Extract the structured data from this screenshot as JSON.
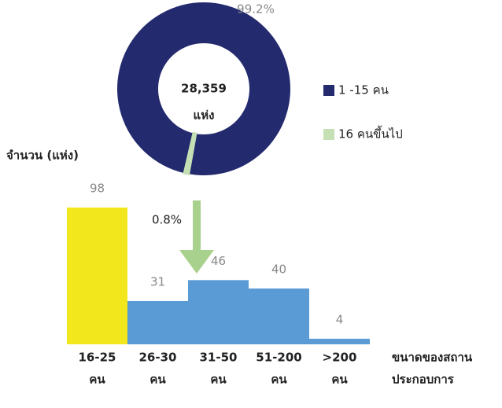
{
  "chart_data": [
    {
      "type": "pie",
      "categories": [
        "1 -15 คน",
        "16 คนขึ้นไป"
      ],
      "values": [
        99.2,
        0.8
      ],
      "value_labels": [
        "99.2%",
        "0.8%"
      ],
      "colors": [
        "#232a6e",
        "#c5e0b4"
      ],
      "center_text": [
        "28,359",
        "แห่ง"
      ]
    },
    {
      "type": "bar",
      "ylabel": "จำนวน (แห่ง)",
      "xlabel": [
        "ขนาดของสถาน",
        "ประกอบการ"
      ],
      "categories": [
        [
          "16-25",
          "คน"
        ],
        [
          "26-30",
          "คน"
        ],
        [
          "31-50",
          "คน"
        ],
        [
          "51-200",
          "คน"
        ],
        [
          ">200",
          "คน"
        ]
      ],
      "values": [
        98,
        31,
        46,
        40,
        4
      ],
      "colors": [
        "#f2e61c",
        "#5b9bd5",
        "#5b9bd5",
        "#5b9bd5",
        "#5b9bd5"
      ]
    }
  ]
}
